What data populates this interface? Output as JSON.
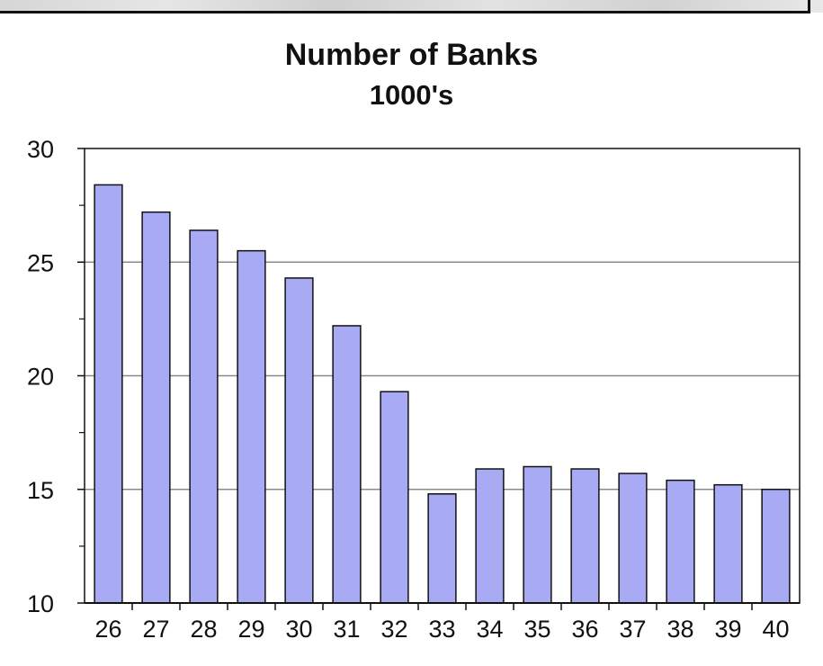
{
  "chart_data": {
    "type": "bar",
    "title": "Number of Banks",
    "subtitle": "1000's",
    "xlabel": "",
    "ylabel": "",
    "categories": [
      "26",
      "27",
      "28",
      "29",
      "30",
      "31",
      "32",
      "33",
      "34",
      "35",
      "36",
      "37",
      "38",
      "39",
      "40"
    ],
    "values": [
      28.4,
      27.2,
      26.4,
      25.5,
      24.3,
      22.2,
      19.3,
      14.8,
      15.9,
      16.0,
      15.9,
      15.7,
      15.4,
      15.2,
      15.0
    ],
    "ylim": [
      10,
      30
    ],
    "yticks": [
      "10",
      "15",
      "20",
      "25",
      "30"
    ],
    "grid": true,
    "legend": "none",
    "bar_color": "#a9aaf4",
    "bar_stroke": "#111111"
  }
}
